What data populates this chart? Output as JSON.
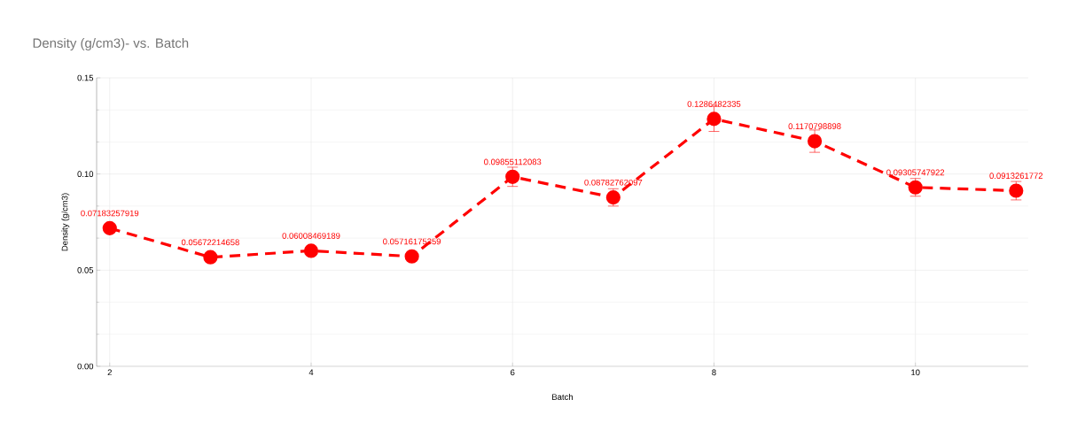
{
  "chart_data": {
    "type": "line",
    "title": "Density (g/cm3)- vs. Batch",
    "xlabel": "Batch",
    "ylabel": "Density (g/cm3)",
    "x": [
      2,
      3,
      4,
      5,
      6,
      7,
      8,
      9,
      10,
      11
    ],
    "series": [
      {
        "color": "#ff0000",
        "values": [
          0.07183257919,
          0.05672214658,
          0.06008469189,
          0.05716175359,
          0.09855112083,
          0.08782762097,
          0.1286482335,
          0.1170798898,
          0.09305747922,
          0.0913261772
        ],
        "value_labels": [
          "0.07183257919",
          "0.05672214658",
          "0.06008469189",
          "0.05716175359",
          "0.09855112083",
          "0.08782762097",
          "0.1286482335",
          "0.1170798898",
          "0.09305747922",
          "0.0913261772"
        ],
        "errors": [
          null,
          null,
          null,
          null,
          0.005,
          0.0045,
          0.0065,
          0.0058,
          0.0046,
          0.0048
        ]
      }
    ],
    "xlim": [
      1.87,
      11.12
    ],
    "ylim": [
      0,
      0.15
    ],
    "xticks": [
      2,
      4,
      6,
      8,
      10
    ],
    "yticks": [
      {
        "value": 0,
        "label": "0.00"
      },
      {
        "value": 0.05,
        "label": "0.05"
      },
      {
        "value": 0.1,
        "label": "0.10"
      },
      {
        "value": 0.15,
        "label": "0.15"
      }
    ],
    "grid": true,
    "marker": "circle",
    "line_style": "dashed"
  }
}
